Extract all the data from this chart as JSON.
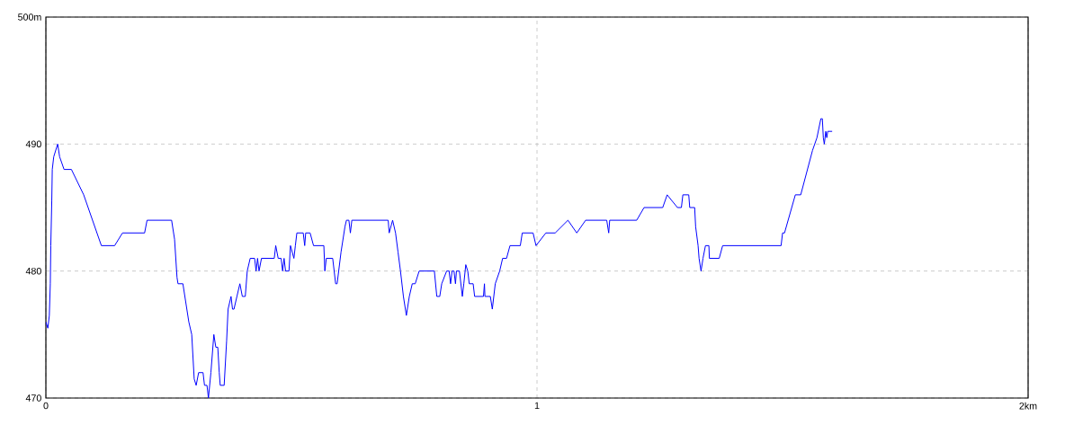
{
  "chart_data": {
    "type": "line",
    "xlim": [
      0,
      2
    ],
    "ylim": [
      470,
      500
    ],
    "xticks": [
      0,
      1,
      {
        "value": 2,
        "label": "2km"
      }
    ],
    "yticks": [
      470,
      480,
      490,
      {
        "value": 500,
        "label": "500m"
      }
    ],
    "grid": true,
    "series": [
      {
        "color": "#0000ff",
        "x": [
          0,
          0.004,
          0.007,
          0.009,
          0.01,
          0.012,
          0.013,
          0.016,
          0.024,
          0.028,
          0.037,
          0.052,
          0.077,
          0.113,
          0.14,
          0.156,
          0.201,
          0.206,
          0.256,
          0.262,
          0.267,
          0.269,
          0.279,
          0.285,
          0.291,
          0.297,
          0.302,
          0.306,
          0.311,
          0.32,
          0.323,
          0.328,
          0.331,
          0.336,
          0.342,
          0.346,
          0.35,
          0.353,
          0.355,
          0.363,
          0.368,
          0.371,
          0.377,
          0.38,
          0.383,
          0.389,
          0.395,
          0.4,
          0.406,
          0.41,
          0.416,
          0.425,
          0.428,
          0.431,
          0.434,
          0.439,
          0.465,
          0.468,
          0.473,
          0.479,
          0.482,
          0.485,
          0.488,
          0.495,
          0.498,
          0.505,
          0.508,
          0.511,
          0.524,
          0.527,
          0.529,
          0.538,
          0.545,
          0.566,
          0.568,
          0.571,
          0.584,
          0.59,
          0.593,
          0.601,
          0.609,
          0.612,
          0.617,
          0.62,
          0.623,
          0.697,
          0.699,
          0.706,
          0.712,
          0.717,
          0.722,
          0.728,
          0.734,
          0.74,
          0.746,
          0.752,
          0.76,
          0.791,
          0.796,
          0.802,
          0.806,
          0.816,
          0.821,
          0.824,
          0.827,
          0.831,
          0.834,
          0.836,
          0.842,
          0.848,
          0.851,
          0.855,
          0.859,
          0.862,
          0.87,
          0.873,
          0.891,
          0.893,
          0.894,
          0.905,
          0.909,
          0.915,
          0.924,
          0.93,
          0.938,
          0.945,
          0.966,
          0.97,
          0.992,
          0.998,
          1.018,
          1.037,
          1.063,
          1.081,
          1.099,
          1.142,
          1.146,
          1.148,
          1.203,
          1.218,
          1.256,
          1.265,
          1.286,
          1.294,
          1.297,
          1.309,
          1.311,
          1.321,
          1.323,
          1.328,
          1.33,
          1.334,
          1.338,
          1.343,
          1.35,
          1.351,
          1.371,
          1.378,
          1.497,
          1.5,
          1.504,
          1.526,
          1.537,
          1.561,
          1.57,
          1.578,
          1.581,
          1.583,
          1.585,
          1.588,
          1.59,
          1.592,
          1.601
        ],
        "values": [
          476,
          475.5,
          476.5,
          479,
          482,
          485.5,
          488,
          489,
          490,
          489,
          488,
          488,
          486,
          482,
          482,
          483,
          483,
          484,
          484,
          482.5,
          479.5,
          479,
          479,
          477.5,
          476,
          475,
          471.5,
          471,
          472,
          472,
          471,
          471,
          470,
          472,
          475,
          474,
          474,
          472,
          471,
          471,
          474.5,
          477,
          478,
          477,
          477,
          478,
          479,
          478,
          478,
          480,
          481,
          481,
          480,
          481,
          480,
          481,
          481,
          482,
          481,
          481,
          480,
          481,
          480,
          480,
          482,
          481,
          482,
          483,
          483,
          482,
          483,
          483,
          482,
          482,
          480,
          481,
          481,
          479,
          479,
          481.5,
          483.5,
          484,
          484,
          483,
          484,
          484,
          483,
          484,
          483,
          481.5,
          480,
          478,
          476.5,
          478,
          479,
          479,
          480,
          480,
          478,
          478,
          479,
          480,
          480,
          479,
          480,
          480,
          479,
          480,
          480,
          478,
          479,
          480.5,
          480,
          479,
          479,
          478,
          478,
          479,
          478,
          478,
          477,
          479,
          480,
          481,
          481,
          482,
          482,
          483,
          483,
          482,
          483,
          483,
          484,
          483,
          484,
          484,
          483,
          484,
          484,
          485,
          485,
          486,
          485,
          485,
          486,
          486,
          485,
          485,
          483.5,
          482,
          481,
          480,
          481,
          482,
          482,
          481,
          481,
          482,
          482,
          483,
          483,
          486,
          486,
          489.5,
          490.5,
          492,
          492,
          490.5,
          490,
          491,
          490.5,
          491,
          491
        ]
      }
    ]
  }
}
